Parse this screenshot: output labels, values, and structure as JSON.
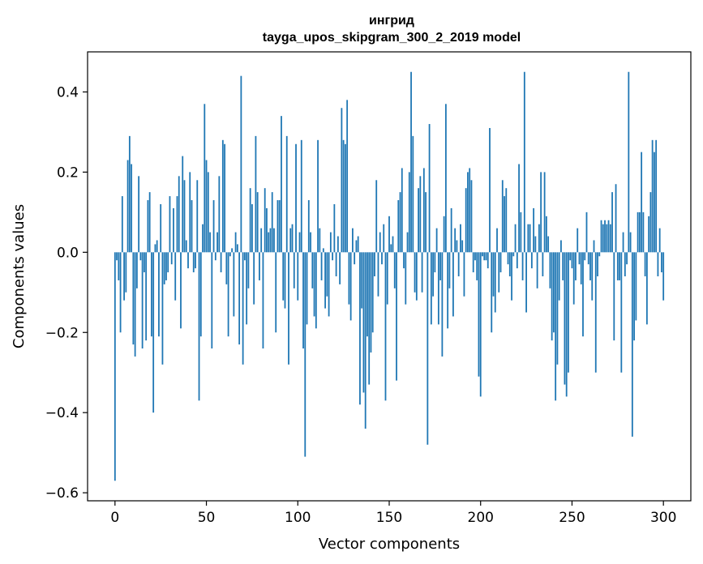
{
  "chart_data": {
    "type": "bar",
    "title_line1": "ингрид",
    "title_line2": "tayga_upos_skipgram_300_2_2019 model",
    "xlabel": "Vector components",
    "ylabel": "Components values",
    "xlim": [
      -15,
      315
    ],
    "ylim": [
      -0.62,
      0.5
    ],
    "x_ticks": [
      0,
      50,
      100,
      150,
      200,
      250,
      300
    ],
    "x_tick_labels": [
      "0",
      "50",
      "100",
      "150",
      "200",
      "250",
      "300"
    ],
    "y_ticks": [
      -0.6,
      -0.4,
      -0.2,
      0.0,
      0.2,
      0.4
    ],
    "y_tick_labels": [
      "−0.6",
      "−0.4",
      "−0.2",
      "0.0",
      "0.2",
      "0.4"
    ],
    "bar_color": "#1f77b4",
    "grid": false,
    "x_start": 0,
    "values": [
      -0.57,
      -0.02,
      -0.07,
      -0.2,
      0.14,
      -0.12,
      -0.1,
      0.23,
      0.29,
      0.22,
      -0.23,
      -0.26,
      -0.09,
      0.19,
      -0.02,
      -0.24,
      -0.05,
      -0.22,
      0.13,
      0.15,
      -0.21,
      -0.4,
      0.02,
      0.03,
      -0.21,
      0.12,
      -0.28,
      -0.08,
      -0.07,
      -0.05,
      0.14,
      -0.03,
      0.11,
      -0.12,
      0.14,
      0.19,
      -0.19,
      0.24,
      0.18,
      0.03,
      -0.04,
      0.2,
      0.13,
      -0.05,
      -0.04,
      0.18,
      -0.37,
      -0.21,
      0.07,
      0.37,
      0.23,
      0.2,
      0.05,
      -0.24,
      0.13,
      -0.02,
      0.05,
      0.19,
      -0.05,
      0.28,
      0.27,
      -0.08,
      -0.21,
      -0.01,
      0.01,
      -0.16,
      0.05,
      0.02,
      -0.23,
      0.44,
      -0.28,
      -0.02,
      -0.18,
      -0.09,
      0.16,
      0.12,
      -0.13,
      0.29,
      0.15,
      -0.07,
      0.06,
      -0.24,
      0.16,
      0.11,
      0.05,
      0.06,
      0.15,
      0.06,
      -0.2,
      0.13,
      0.13,
      0.34,
      -0.12,
      -0.14,
      0.29,
      -0.28,
      0.06,
      0.07,
      -0.09,
      0.27,
      -0.12,
      0.05,
      0.28,
      -0.24,
      -0.51,
      -0.18,
      0.13,
      0.05,
      -0.09,
      -0.16,
      -0.19,
      0.28,
      0.06,
      -0.07,
      0.01,
      -0.14,
      -0.11,
      -0.16,
      0.05,
      -0.02,
      0.12,
      -0.06,
      0.04,
      -0.08,
      0.36,
      0.28,
      0.27,
      0.38,
      -0.13,
      -0.17,
      0.06,
      -0.03,
      0.03,
      0.04,
      -0.38,
      -0.14,
      -0.35,
      -0.44,
      -0.21,
      -0.33,
      -0.25,
      -0.2,
      -0.06,
      0.18,
      -0.11,
      0.05,
      -0.03,
      0.07,
      -0.37,
      -0.13,
      0.09,
      0.02,
      0.04,
      -0.09,
      -0.32,
      0.13,
      0.15,
      0.21,
      -0.04,
      -0.13,
      0.05,
      0.2,
      0.45,
      0.29,
      -0.1,
      -0.12,
      0.16,
      0.19,
      -0.1,
      0.21,
      0.15,
      -0.48,
      0.32,
      -0.18,
      -0.11,
      -0.05,
      0.06,
      -0.18,
      -0.07,
      -0.26,
      0.09,
      0.37,
      -0.19,
      -0.09,
      0.11,
      -0.16,
      0.06,
      0.03,
      -0.06,
      0.07,
      0.03,
      -0.11,
      0.16,
      0.2,
      0.21,
      0.18,
      -0.05,
      -0.02,
      -0.07,
      -0.31,
      -0.36,
      -0.01,
      -0.02,
      -0.02,
      -0.04,
      0.31,
      -0.2,
      -0.11,
      -0.15,
      0.06,
      -0.1,
      -0.05,
      0.18,
      0.14,
      0.16,
      -0.03,
      -0.06,
      -0.12,
      -0.01,
      0.07,
      -0.04,
      0.22,
      0.1,
      -0.07,
      0.45,
      -0.15,
      0.07,
      0.07,
      -0.04,
      0.11,
      0.04,
      -0.09,
      0.07,
      0.2,
      -0.06,
      0.2,
      0.09,
      0.04,
      -0.09,
      -0.22,
      -0.2,
      -0.37,
      -0.28,
      -0.12,
      0.03,
      -0.07,
      -0.33,
      -0.36,
      -0.3,
      -0.02,
      -0.04,
      -0.13,
      -0.07,
      0.06,
      -0.03,
      -0.08,
      -0.21,
      -0.02,
      0.1,
      -0.03,
      -0.07,
      -0.12,
      0.03,
      -0.3,
      -0.06,
      -0.01,
      0.08,
      0.07,
      0.08,
      0.07,
      0.08,
      0.07,
      0.15,
      -0.22,
      0.17,
      -0.07,
      -0.07,
      -0.3,
      0.05,
      -0.06,
      -0.03,
      0.45,
      0.05,
      -0.46,
      -0.22,
      -0.17,
      0.1,
      0.1,
      0.25,
      0.1,
      -0.06,
      -0.18,
      0.09,
      0.15,
      0.28,
      0.25,
      0.28,
      -0.06,
      0.06,
      -0.05,
      -0.12
    ]
  }
}
